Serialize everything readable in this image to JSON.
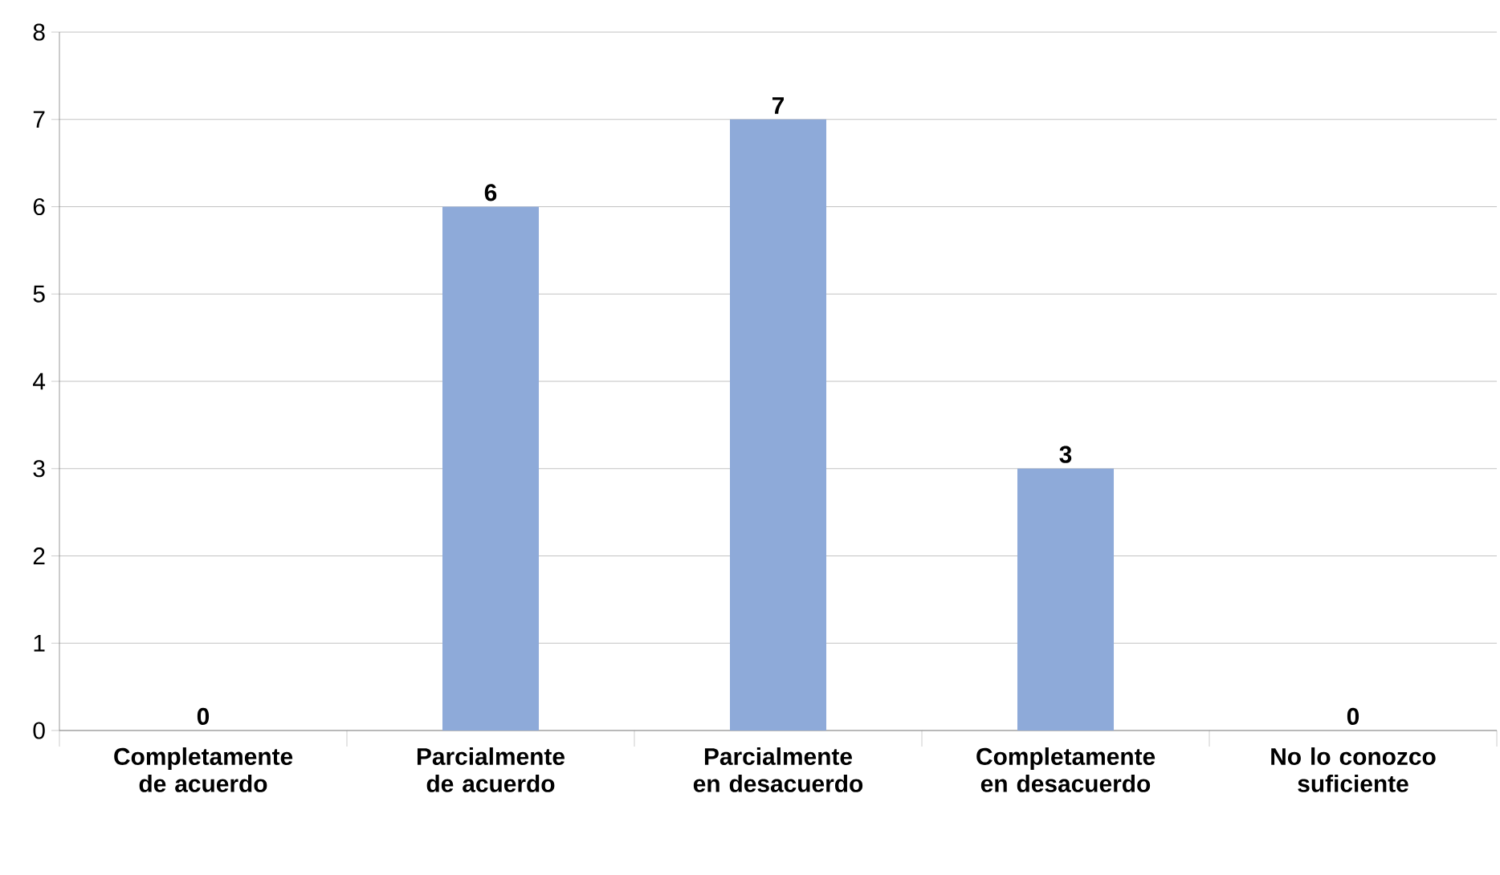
{
  "chart_data": {
    "type": "bar",
    "categories": [
      "Completamente de acuerdo",
      "Parcialmente de acuerdo",
      "Parcialmente en desacuerdo",
      "Completamente en desacuerdo",
      "No lo conozco suficiente"
    ],
    "values": [
      0,
      6,
      7,
      3,
      0
    ],
    "color": "#8eaad9",
    "ylim": [
      0,
      8
    ],
    "yticks": [
      0,
      1,
      2,
      3,
      4,
      5,
      6,
      7,
      8
    ],
    "grid": "y",
    "data_labels": true
  }
}
